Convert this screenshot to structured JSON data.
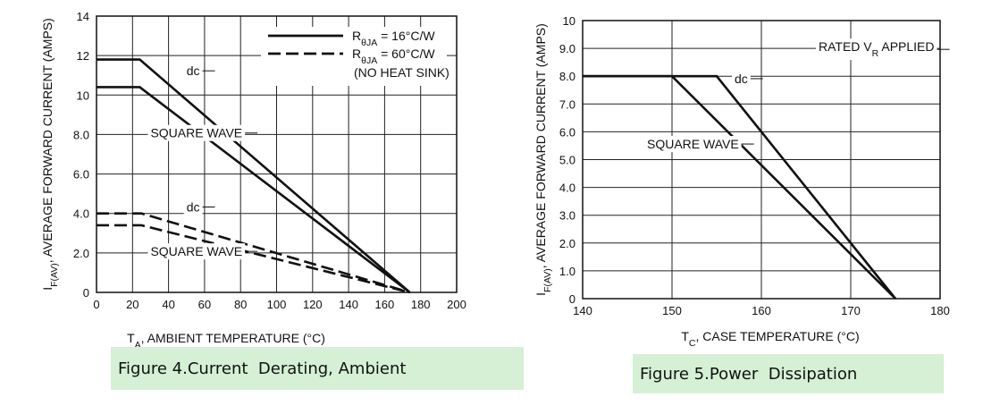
{
  "chart_data": [
    {
      "type": "line",
      "title": "",
      "xlabel": "TA, AMBIENT TEMPERATURE (°C)",
      "xlabel_main": "T",
      "xlabel_sub": "A",
      "xlabel_rest": ", AMBIENT TEMPERATURE (°C)",
      "ylabel": "IF(AV), AVERAGE FORWARD CURRENT (AMPS)",
      "ylabel_main": "I",
      "ylabel_sub": "F(AV)",
      "ylabel_rest": ", AVERAGE FORWARD CURRENT (AMPS)",
      "xlim": [
        0,
        200
      ],
      "ylim": [
        0,
        14
      ],
      "x_ticks": [
        "0",
        "20",
        "40",
        "60",
        "80",
        "100",
        "120",
        "140",
        "160",
        "180",
        "200"
      ],
      "x_tick_values": [
        0,
        20,
        40,
        60,
        80,
        100,
        120,
        140,
        160,
        180,
        200
      ],
      "y_ticks": [
        "0",
        "2.0",
        "4.0",
        "6.0",
        "8.0",
        "10",
        "12",
        "14"
      ],
      "y_tick_values": [
        0,
        2,
        4,
        6,
        8,
        10,
        12,
        14
      ],
      "grid": true,
      "series": [
        {
          "name": "dc",
          "style": "solid",
          "x": [
            0,
            24,
            174
          ],
          "y": [
            11.8,
            11.8,
            0
          ]
        },
        {
          "name": "SQUARE WAVE",
          "style": "solid",
          "x": [
            0,
            24,
            174
          ],
          "y": [
            10.4,
            10.4,
            0
          ]
        },
        {
          "name": "dc",
          "style": "dashed",
          "x": [
            0,
            25,
            174
          ],
          "y": [
            4.0,
            4.0,
            0
          ]
        },
        {
          "name": "SQUARE WAVE",
          "style": "dashed",
          "x": [
            0,
            25,
            174
          ],
          "y": [
            3.4,
            3.4,
            0
          ]
        }
      ],
      "annotations": [
        {
          "text": "dc",
          "x": 50,
          "y": 11.0
        },
        {
          "text": "SQUARE WAVE",
          "x": 30,
          "y": 7.85
        },
        {
          "text": "dc",
          "x": 50,
          "y": 4.1
        },
        {
          "text": "SQUARE WAVE",
          "x": 30,
          "y": 1.85
        }
      ],
      "legend": {
        "placement": "top-right",
        "entries": [
          {
            "style": "solid",
            "label_main": "R",
            "label_sub": "θJA",
            "label_rest": " = 16°C/W"
          },
          {
            "style": "dashed",
            "label_main": "R",
            "label_sub": "θJA",
            "label_rest": " = 60°C/W"
          }
        ],
        "note": "(NO HEAT SINK)"
      },
      "caption": "Figure 4.Current  Derating, Ambient"
    },
    {
      "type": "line",
      "title": "",
      "xlabel": "TC, CASE TEMPERATURE (°C)",
      "xlabel_main": "T",
      "xlabel_sub": "C",
      "xlabel_rest": ", CASE TEMPERATURE (°C)",
      "ylabel": "IF(AV), AVERAGE FORWARD CURRENT (AMPS)",
      "ylabel_main": "I",
      "ylabel_sub": "F(AV)",
      "ylabel_rest": ", AVERAGE FORWARD CURRENT (AMPS)",
      "xlim": [
        140,
        180
      ],
      "ylim": [
        0,
        10
      ],
      "x_ticks": [
        "140",
        "150",
        "160",
        "170",
        "180"
      ],
      "x_tick_values": [
        140,
        150,
        160,
        170,
        180
      ],
      "y_ticks": [
        "0",
        "1.0",
        "2.0",
        "3.0",
        "4.0",
        "5.0",
        "6.0",
        "7.0",
        "8.0",
        "9.0",
        "10"
      ],
      "y_tick_values": [
        0,
        1,
        2,
        3,
        4,
        5,
        6,
        7,
        8,
        9,
        10
      ],
      "grid": true,
      "series": [
        {
          "name": "dc",
          "style": "solid",
          "x": [
            140,
            155,
            175
          ],
          "y": [
            8,
            8,
            0
          ]
        },
        {
          "name": "SQUARE WAVE",
          "style": "solid",
          "x": [
            140,
            150,
            175
          ],
          "y": [
            8,
            8,
            0
          ]
        }
      ],
      "annotations": [
        {
          "text": "dc",
          "x": 157,
          "y": 7.75
        },
        {
          "text": "SQUARE WAVE",
          "x": 147.2,
          "y": 5.4
        },
        {
          "text": "RATED VR APPLIED",
          "main": "RATED V",
          "sub": "R",
          "rest": " APPLIED",
          "x": 166.4,
          "y": 8.9
        }
      ],
      "caption": "Figure 5.Power  Dissipation"
    }
  ]
}
